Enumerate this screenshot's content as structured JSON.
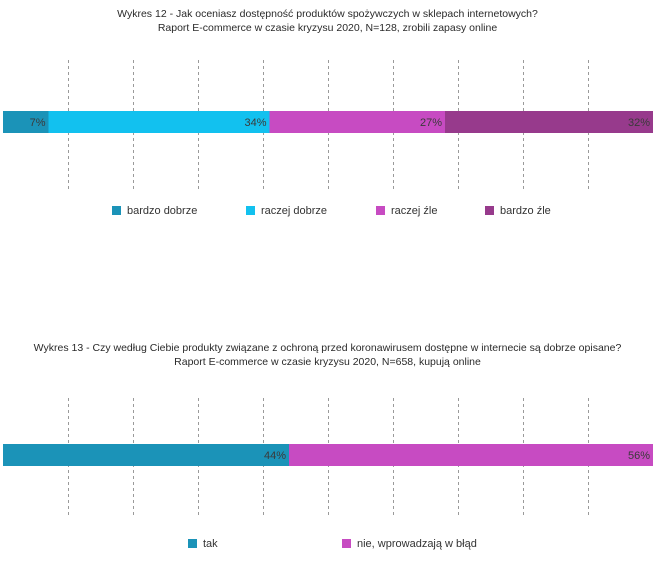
{
  "chart_data": [
    {
      "type": "bar",
      "orientation": "horizontal-stacked-100",
      "title": "Wykres 12 - Jak oceniasz dostępność produktów spożywczych w sklepach internetowych?",
      "subtitle": "Raport E-commerce w czasie kryzysu 2020, N=128, zrobili zapasy online",
      "series": [
        {
          "name": "bardzo dobrze",
          "value": 7,
          "label": "7%",
          "color": "#1b93b8"
        },
        {
          "name": "raczej dobrze",
          "value": 34,
          "label": "34%",
          "color": "#12c1ef"
        },
        {
          "name": "raczej źle",
          "value": 27,
          "label": "27%",
          "color": "#c74bc2"
        },
        {
          "name": "bardzo źle",
          "value": 32,
          "label": "32%",
          "color": "#973a8c"
        }
      ],
      "xlim": [
        0,
        100
      ],
      "grid": true,
      "legend": "bottom"
    },
    {
      "type": "bar",
      "orientation": "horizontal-stacked-100",
      "title": "Wykres 13 - Czy według Ciebie produkty związane z ochroną przed koronawirusem dostępne w internecie są dobrze opisane?",
      "subtitle": "Raport E-commerce w czasie kryzysu 2020, N=658, kupują online",
      "series": [
        {
          "name": "tak",
          "value": 44,
          "label": "44%",
          "color": "#1b93b8"
        },
        {
          "name": "nie, wprowadzają w błąd",
          "value": 56,
          "label": "56%",
          "color": "#c74bc2"
        }
      ],
      "xlim": [
        0,
        100
      ],
      "grid": true,
      "legend": "bottom"
    }
  ]
}
